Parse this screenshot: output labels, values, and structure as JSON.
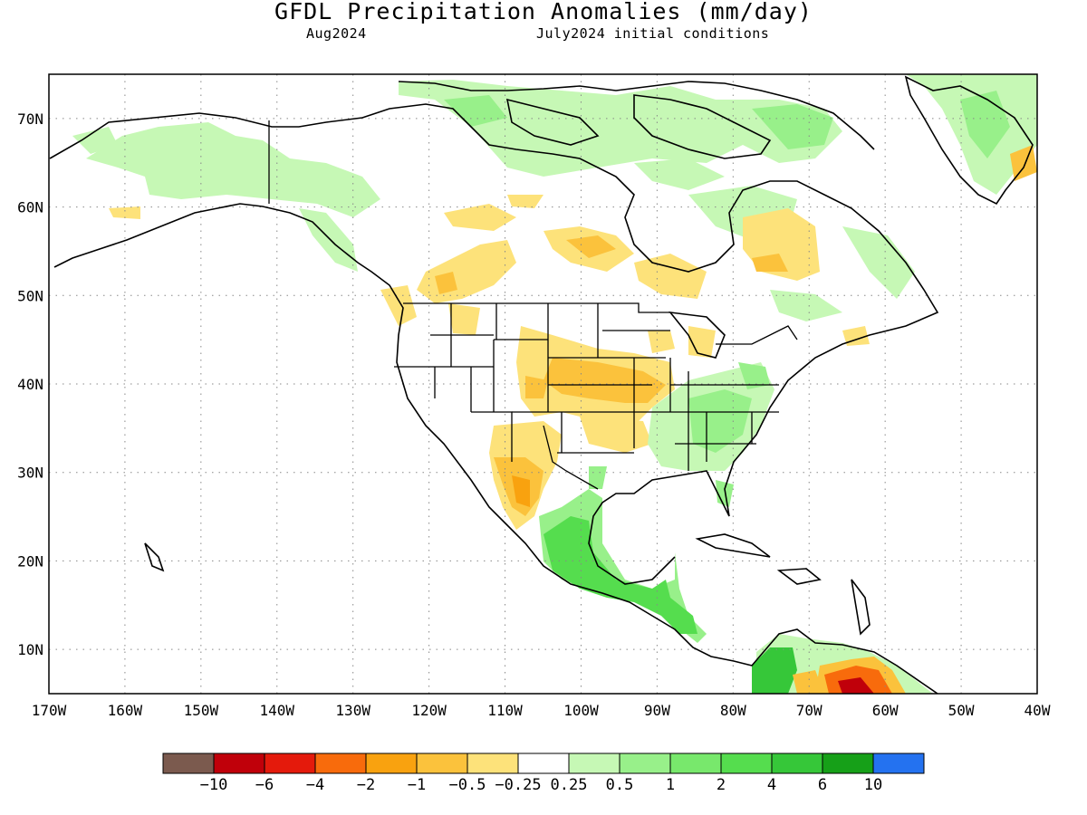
{
  "title": "GFDL Precipitation Anomalies (mm/day)",
  "subtitle_left": "Aug2024",
  "subtitle_right": "July2024 initial conditions",
  "map": {
    "lon_range": [
      -170,
      -40
    ],
    "lat_range": [
      5,
      75
    ],
    "lat_ticks": [
      "10N",
      "20N",
      "30N",
      "40N",
      "50N",
      "60N",
      "70N"
    ],
    "lon_ticks": [
      "170W",
      "160W",
      "150W",
      "140W",
      "130W",
      "120W",
      "110W",
      "100W",
      "90W",
      "80W",
      "70W",
      "60W",
      "50W",
      "40W"
    ],
    "grid": true
  },
  "colorbar": {
    "colors": [
      "#7b5a4e",
      "#c0000a",
      "#e41a0c",
      "#f86b0c",
      "#f9a20f",
      "#fbc23c",
      "#fde27a",
      "#ffffff",
      "#c6f8b5",
      "#98f08a",
      "#78e86c",
      "#55dd4e",
      "#36c739",
      "#16a018",
      "#2472f0"
    ],
    "labels": [
      "−10",
      "−6",
      "−4",
      "−2",
      "−1",
      "−0.5",
      "−0.25",
      "0.25",
      "0.5",
      "1",
      "2",
      "4",
      "6",
      "10"
    ]
  },
  "anomaly_regions": [
    {
      "name": "alaska-wet",
      "color": "#c6f8b5"
    },
    {
      "name": "canada-north-wet",
      "color": "#c6f8b5"
    },
    {
      "name": "greenland-wet",
      "color": "#c6f8b5"
    },
    {
      "name": "canada-dry",
      "color": "#fde27a"
    },
    {
      "name": "plains-dry",
      "color": "#fbc23c"
    },
    {
      "name": "mexico-dry",
      "color": "#f9a20f"
    },
    {
      "name": "southeast-us-wet",
      "color": "#98f08a"
    },
    {
      "name": "mexico-central-america-wet",
      "color": "#55dd4e"
    },
    {
      "name": "south-america-wet",
      "color": "#36c739"
    },
    {
      "name": "south-america-dry",
      "color": "#f86b0c"
    },
    {
      "name": "south-america-very-dry",
      "color": "#c0000a"
    }
  ]
}
